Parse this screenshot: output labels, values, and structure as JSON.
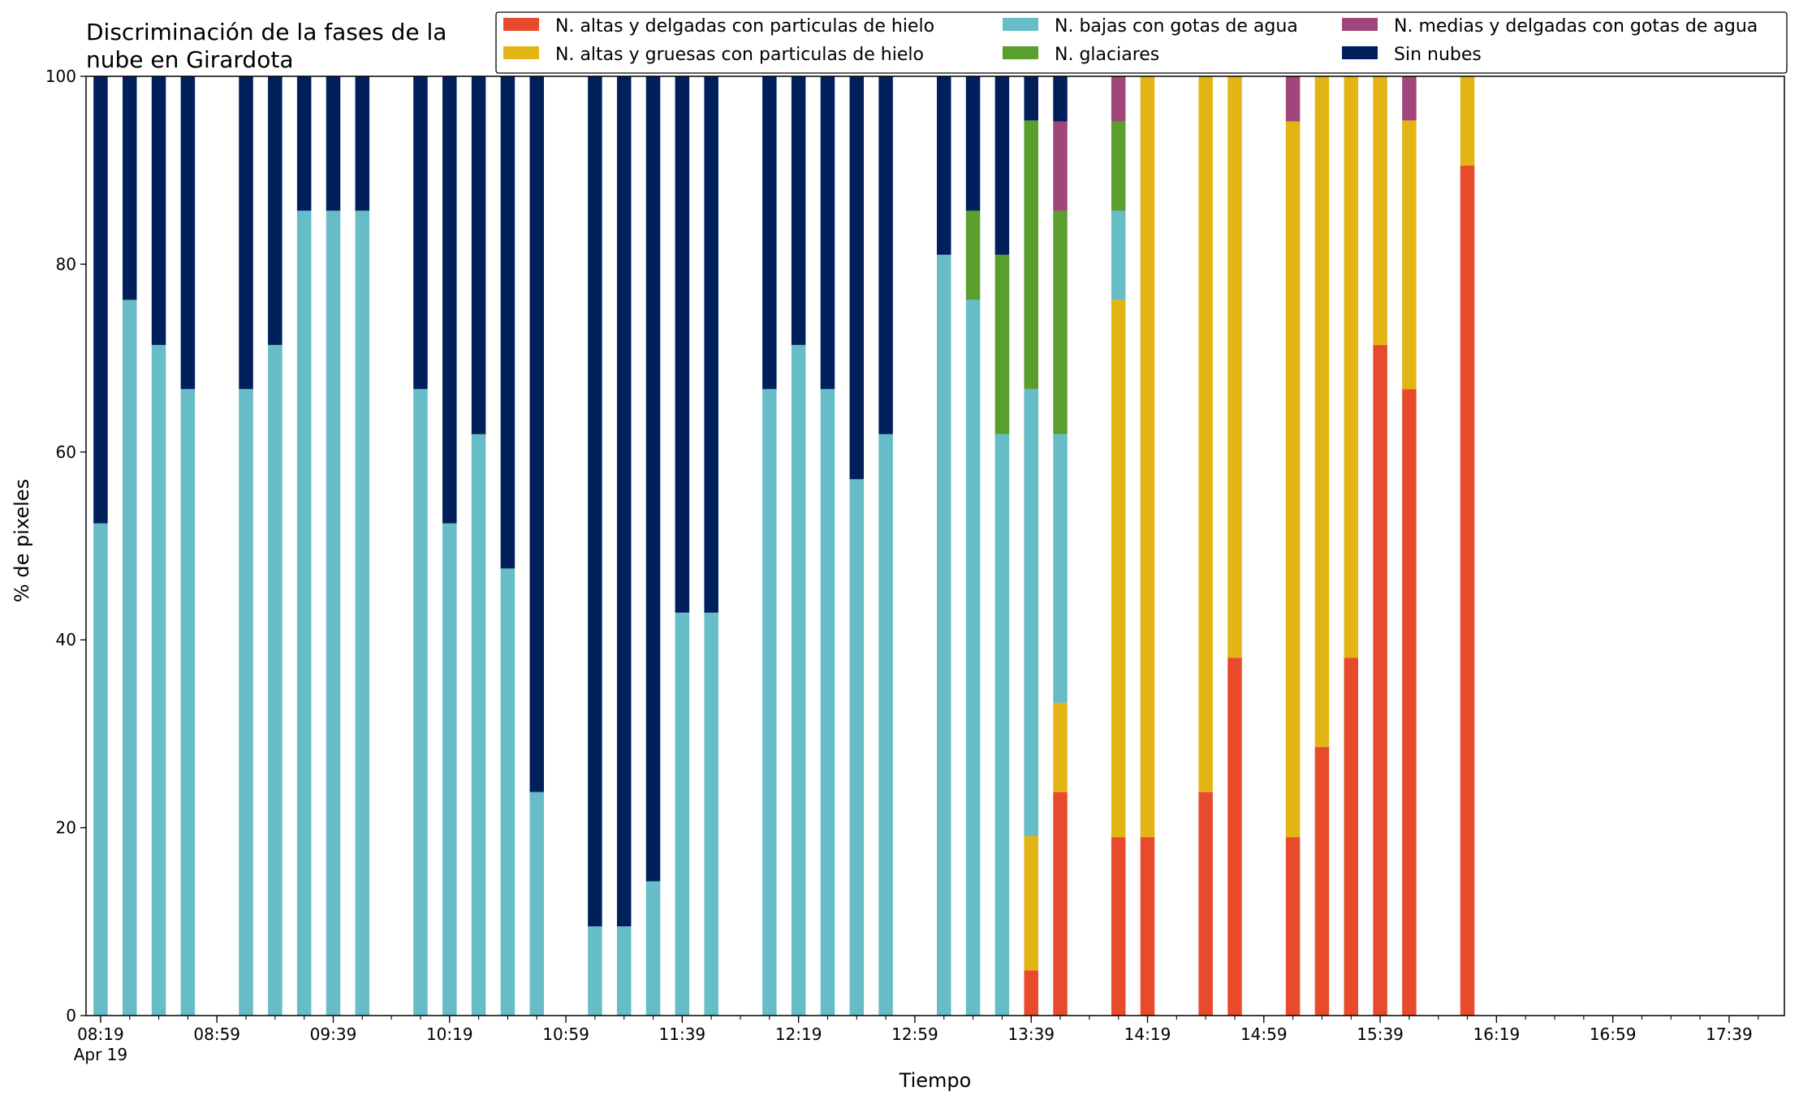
{
  "chart_data": {
    "type": "bar",
    "stacked": true,
    "title_lines": [
      "Discriminación de la fases de la",
      "nube en Girardota"
    ],
    "xlabel": "Tiempo",
    "ylabel": "% de pixeles",
    "ylim": [
      0,
      100
    ],
    "yticks": [
      0,
      20,
      40,
      60,
      80,
      100
    ],
    "xlim": [
      "08:14",
      "17:58"
    ],
    "xticks": [
      {
        "time": "08:19",
        "label": "08:19",
        "sub": "Apr 19"
      },
      {
        "time": "08:59",
        "label": "08:59",
        "sub": ""
      },
      {
        "time": "09:39",
        "label": "09:39",
        "sub": ""
      },
      {
        "time": "10:19",
        "label": "10:19",
        "sub": ""
      },
      {
        "time": "10:59",
        "label": "10:59",
        "sub": ""
      },
      {
        "time": "11:39",
        "label": "11:39",
        "sub": ""
      },
      {
        "time": "12:19",
        "label": "12:19",
        "sub": ""
      },
      {
        "time": "12:59",
        "label": "12:59",
        "sub": ""
      },
      {
        "time": "13:39",
        "label": "13:39",
        "sub": ""
      },
      {
        "time": "14:19",
        "label": "14:19",
        "sub": ""
      },
      {
        "time": "14:59",
        "label": "14:59",
        "sub": ""
      },
      {
        "time": "15:39",
        "label": "15:39",
        "sub": ""
      },
      {
        "time": "16:19",
        "label": "16:19",
        "sub": ""
      },
      {
        "time": "16:59",
        "label": "16:59",
        "sub": ""
      },
      {
        "time": "17:39",
        "label": "17:39",
        "sub": ""
      }
    ],
    "minor_tick_interval_minutes": 10,
    "grid": false,
    "legend": "top-right, above plot, 3 columns",
    "series": [
      {
        "name": "N. altas y delgadas con particulas de hielo",
        "color": "#e84a2c"
      },
      {
        "name": "N. altas y gruesas con particulas de hielo",
        "color": "#e2b514"
      },
      {
        "name": "N. bajas con gotas de agua",
        "color": "#66bdc8"
      },
      {
        "name": "N. glaciares",
        "color": "#5a9e2d"
      },
      {
        "name": "N. medias y delgadas con gotas de agua",
        "color": "#a1457a"
      },
      {
        "name": "Sin nubes",
        "color": "#00205c"
      }
    ],
    "stack_order": [
      "N. altas y delgadas con particulas de hielo",
      "N. altas y gruesas con particulas de hielo",
      "N. bajas con gotas de agua",
      "N. glaciares",
      "N. medias y delgadas con gotas de agua",
      "Sin nubes"
    ],
    "points": [
      {
        "time": "08:19",
        "values": [
          0,
          0,
          52.4,
          0,
          0,
          47.6
        ]
      },
      {
        "time": "08:29",
        "values": [
          0,
          0,
          76.2,
          0,
          0,
          23.8
        ]
      },
      {
        "time": "08:39",
        "values": [
          0,
          0,
          71.4,
          0,
          0,
          28.6
        ]
      },
      {
        "time": "08:49",
        "values": [
          0,
          0,
          66.7,
          0,
          0,
          33.3
        ]
      },
      {
        "time": "09:09",
        "values": [
          0,
          0,
          66.7,
          0,
          0,
          33.3
        ]
      },
      {
        "time": "09:19",
        "values": [
          0,
          0,
          71.4,
          0,
          0,
          28.6
        ]
      },
      {
        "time": "09:29",
        "values": [
          0,
          0,
          85.7,
          0,
          0,
          14.3
        ]
      },
      {
        "time": "09:39",
        "values": [
          0,
          0,
          85.7,
          0,
          0,
          14.3
        ]
      },
      {
        "time": "09:49",
        "values": [
          0,
          0,
          85.7,
          0,
          0,
          14.3
        ]
      },
      {
        "time": "10:09",
        "values": [
          0,
          0,
          66.7,
          0,
          0,
          33.3
        ]
      },
      {
        "time": "10:19",
        "values": [
          0,
          0,
          52.4,
          0,
          0,
          47.6
        ]
      },
      {
        "time": "10:29",
        "values": [
          0,
          0,
          61.9,
          0,
          0,
          38.1
        ]
      },
      {
        "time": "10:39",
        "values": [
          0,
          0,
          47.6,
          0,
          0,
          52.4
        ]
      },
      {
        "time": "10:49",
        "values": [
          0,
          0,
          23.8,
          0,
          0,
          76.2
        ]
      },
      {
        "time": "11:09",
        "values": [
          0,
          0,
          9.5,
          0,
          0,
          90.5
        ]
      },
      {
        "time": "11:19",
        "values": [
          0,
          0,
          9.5,
          0,
          0,
          90.5
        ]
      },
      {
        "time": "11:29",
        "values": [
          0,
          0,
          14.3,
          0,
          0,
          85.7
        ]
      },
      {
        "time": "11:39",
        "values": [
          0,
          0,
          42.9,
          0,
          0,
          57.1
        ]
      },
      {
        "time": "11:49",
        "values": [
          0,
          0,
          42.9,
          0,
          0,
          57.1
        ]
      },
      {
        "time": "12:09",
        "values": [
          0,
          0,
          66.7,
          0,
          0,
          33.3
        ]
      },
      {
        "time": "12:19",
        "values": [
          0,
          0,
          71.4,
          0,
          0,
          28.6
        ]
      },
      {
        "time": "12:29",
        "values": [
          0,
          0,
          66.7,
          0,
          0,
          33.3
        ]
      },
      {
        "time": "12:39",
        "values": [
          0,
          0,
          57.1,
          0,
          0,
          42.9
        ]
      },
      {
        "time": "12:49",
        "values": [
          0,
          0,
          61.9,
          0,
          0,
          38.1
        ]
      },
      {
        "time": "13:09",
        "values": [
          0,
          0,
          81.0,
          0,
          0,
          19.0
        ]
      },
      {
        "time": "13:19",
        "values": [
          0,
          0,
          76.2,
          9.5,
          0,
          14.3
        ]
      },
      {
        "time": "13:29",
        "values": [
          0,
          0,
          61.9,
          19.1,
          0,
          19.0
        ]
      },
      {
        "time": "13:39",
        "values": [
          4.8,
          14.3,
          47.6,
          28.6,
          0,
          4.7
        ]
      },
      {
        "time": "13:49",
        "values": [
          23.8,
          9.5,
          28.6,
          23.8,
          9.5,
          4.8
        ]
      },
      {
        "time": "14:09",
        "values": [
          19.0,
          57.2,
          9.5,
          9.5,
          4.8,
          0
        ]
      },
      {
        "time": "14:19",
        "values": [
          19.0,
          81.0,
          0,
          0,
          0,
          0
        ]
      },
      {
        "time": "14:39",
        "values": [
          23.8,
          76.2,
          0,
          0,
          0,
          0
        ]
      },
      {
        "time": "14:49",
        "values": [
          38.1,
          61.9,
          0,
          0,
          0,
          0
        ]
      },
      {
        "time": "15:09",
        "values": [
          19.0,
          76.2,
          0,
          0,
          4.8,
          0
        ]
      },
      {
        "time": "15:19",
        "values": [
          28.6,
          71.4,
          0,
          0,
          0,
          0
        ]
      },
      {
        "time": "15:29",
        "values": [
          38.1,
          61.9,
          0,
          0,
          0,
          0
        ]
      },
      {
        "time": "15:39",
        "values": [
          71.4,
          28.6,
          0,
          0,
          0,
          0
        ]
      },
      {
        "time": "15:49",
        "values": [
          66.7,
          28.6,
          0,
          0,
          4.7,
          0
        ]
      },
      {
        "time": "16:09",
        "values": [
          90.5,
          9.5,
          0,
          0,
          0,
          0
        ]
      }
    ]
  }
}
